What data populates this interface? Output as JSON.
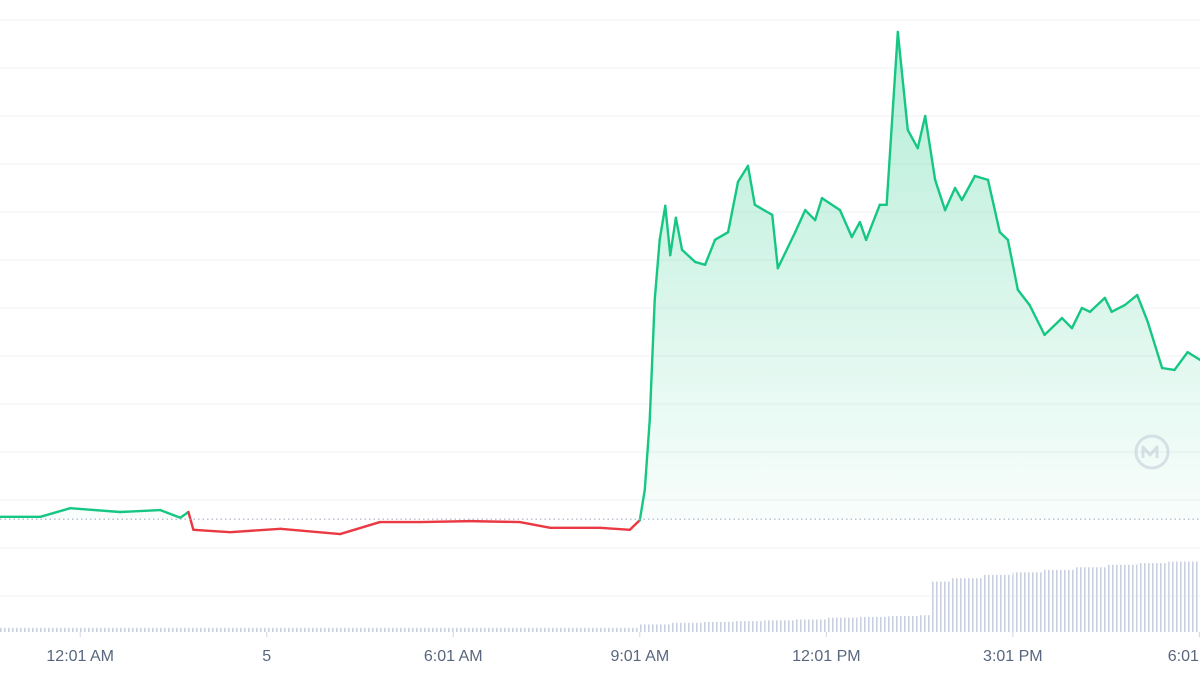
{
  "chart_data": {
    "type": "line",
    "x": [
      -1.29,
      -0.64,
      -0.16,
      0.64,
      1.29,
      1.61,
      1.74,
      1.82,
      2.41,
      3.22,
      4.18,
      4.82,
      5.47,
      6.27,
      7.07,
      7.56,
      8.36,
      8.84,
      9.0,
      9.08,
      9.16,
      9.24,
      9.32,
      9.41,
      9.49,
      9.58,
      9.68,
      9.89,
      10.05,
      10.21,
      10.42,
      10.58,
      10.74,
      10.85,
      11.13,
      11.22,
      11.5,
      11.66,
      11.82,
      11.93,
      12.22,
      12.41,
      12.54,
      12.64,
      12.86,
      12.97,
      13.15,
      13.31,
      13.47,
      13.59,
      13.75,
      13.91,
      14.07,
      14.18,
      14.39,
      14.6,
      14.79,
      14.92,
      15.08,
      15.27,
      15.51,
      15.79,
      15.95,
      16.11,
      16.24,
      16.48,
      16.59,
      16.8,
      17.0,
      17.17,
      17.4,
      17.6,
      17.81,
      18.01
    ],
    "values": [
      2.65,
      2.65,
      2.83,
      2.75,
      2.79,
      2.63,
      2.75,
      2.38,
      2.33,
      2.4,
      2.29,
      2.54,
      2.54,
      2.56,
      2.54,
      2.42,
      2.42,
      2.38,
      2.58,
      3.21,
      4.67,
      7.17,
      8.42,
      9.13,
      8.1,
      8.88,
      8.21,
      7.96,
      7.9,
      8.42,
      8.58,
      9.63,
      9.96,
      9.15,
      8.94,
      7.83,
      8.58,
      9.04,
      8.83,
      9.29,
      9.04,
      8.48,
      8.79,
      8.42,
      9.15,
      9.15,
      12.75,
      10.71,
      10.33,
      11.0,
      9.67,
      9.04,
      9.5,
      9.25,
      9.75,
      9.67,
      8.58,
      8.42,
      7.38,
      7.06,
      6.44,
      6.79,
      6.58,
      7.0,
      6.92,
      7.21,
      6.92,
      7.06,
      7.27,
      6.71,
      5.75,
      5.71,
      6.08,
      5.92
    ],
    "color_up": "#16c784",
    "color_down": "#ea3943",
    "baseline": 2.6,
    "xlim": [
      -1.29,
      18.01
    ],
    "xticks": [
      {
        "value": 0,
        "label": "12:01 AM"
      },
      {
        "value": 3,
        "label": "5"
      },
      {
        "value": 6,
        "label": "6:01 AM"
      },
      {
        "value": 9,
        "label": "9:01 AM"
      },
      {
        "value": 12,
        "label": "12:01 PM"
      },
      {
        "value": 15,
        "label": "3:01 PM"
      },
      {
        "value": 18,
        "label": "6:01"
      }
    ],
    "ylim": [
      0,
      13
    ],
    "yticks": [
      1,
      2,
      3,
      4,
      5,
      6,
      7,
      8,
      9,
      10,
      11,
      12,
      13
    ],
    "grid": true,
    "volume": {
      "bins": [
        -1.29,
        1,
        3,
        5,
        7,
        9,
        9.5,
        10,
        10.5,
        11,
        11.5,
        12,
        12.5,
        13,
        13.5,
        13.7,
        14,
        14.5,
        15,
        15.5,
        16,
        16.5,
        17,
        17.5,
        18.01
      ],
      "values": [
        5,
        5,
        5,
        5,
        5,
        9,
        11,
        12,
        13,
        14,
        15,
        17,
        18,
        19,
        20,
        60,
        64,
        68,
        71,
        74,
        77,
        80,
        82,
        84
      ],
      "ylim": [
        0,
        100
      ],
      "color": "#cfd6e4"
    }
  }
}
